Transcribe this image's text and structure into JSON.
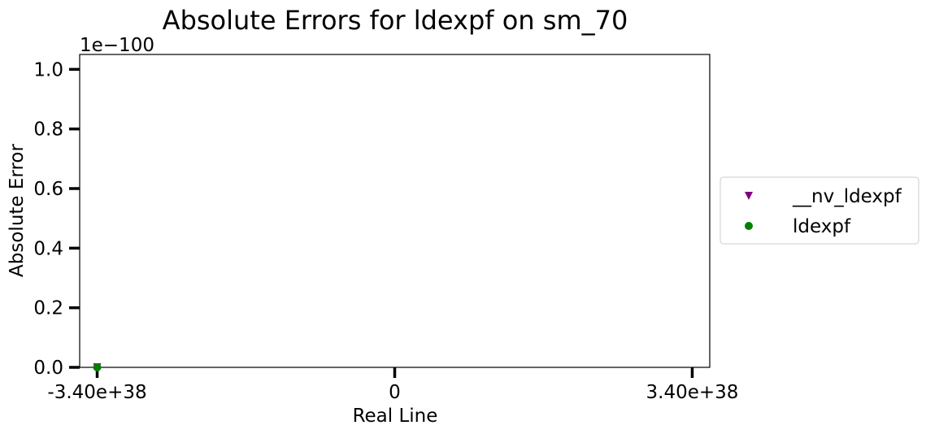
{
  "chart_data": {
    "type": "scatter",
    "title": "Absolute Errors for ldexpf on sm_70",
    "xlabel": "Real Line",
    "ylabel": "Absolute Error",
    "y_offset_label": "1e−100",
    "xlim": [
      -3.6e+38,
      3.6e+38
    ],
    "ylim": [
      0,
      1.05
    ],
    "x_ticks": [
      {
        "value": -3.4e+38,
        "label": "-3.40e+38"
      },
      {
        "value": 0,
        "label": "0"
      },
      {
        "value": 3.4e+38,
        "label": "3.40e+38"
      }
    ],
    "y_ticks": [
      {
        "value": 0.0,
        "label": "0.0"
      },
      {
        "value": 0.2,
        "label": "0.2"
      },
      {
        "value": 0.4,
        "label": "0.4"
      },
      {
        "value": 0.6,
        "label": "0.6"
      },
      {
        "value": 0.8,
        "label": "0.8"
      },
      {
        "value": 1.0,
        "label": "1.0"
      }
    ],
    "grid": false,
    "legend_position": "right outside",
    "series": [
      {
        "name": "__nv_ldexpf",
        "marker": "triangle-down",
        "color": "#800080",
        "points": [
          {
            "x": -3.4e+38,
            "y": 0
          }
        ]
      },
      {
        "name": "ldexpf",
        "marker": "circle",
        "color": "#008000",
        "points": [
          {
            "x": -3.4e+38,
            "y": 0
          }
        ]
      }
    ]
  }
}
